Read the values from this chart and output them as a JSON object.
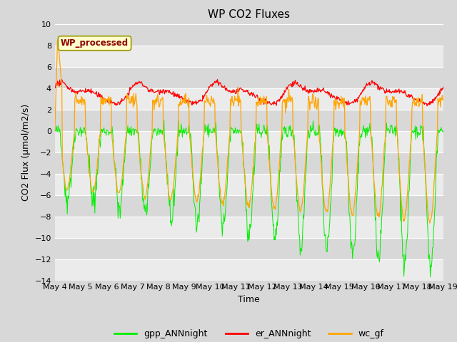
{
  "title": "WP CO2 Fluxes",
  "xlabel": "Time",
  "ylabel": "CO2 Flux (μmol/m2/s)",
  "ylim": [
    -14,
    10
  ],
  "background_color": "#d8d8d8",
  "stripe_color_light": "#ebebeb",
  "annotation_text": "WP_processed",
  "annotation_color": "#8b0000",
  "annotation_bg": "#ffffcc",
  "annotation_edge": "#999900",
  "legend_labels": [
    "gpp_ANNnight",
    "er_ANNnight",
    "wc_gf"
  ],
  "line_colors": [
    "#00ee00",
    "#ff0000",
    "#ffa500"
  ],
  "xtick_labels": [
    "May 4",
    "May 5",
    "May 6",
    "May 7",
    "May 8",
    "May 9",
    "May 10",
    "May 11",
    "May 12",
    "May 13",
    "May 14",
    "May 15",
    "May 16",
    "May 17",
    "May 18",
    "May 19"
  ],
  "xtick_positions": [
    0,
    1,
    2,
    3,
    4,
    5,
    6,
    7,
    8,
    9,
    10,
    11,
    12,
    13,
    14,
    15
  ],
  "ytick_values": [
    -14,
    -12,
    -10,
    -8,
    -6,
    -4,
    -2,
    0,
    2,
    4,
    6,
    8,
    10
  ]
}
